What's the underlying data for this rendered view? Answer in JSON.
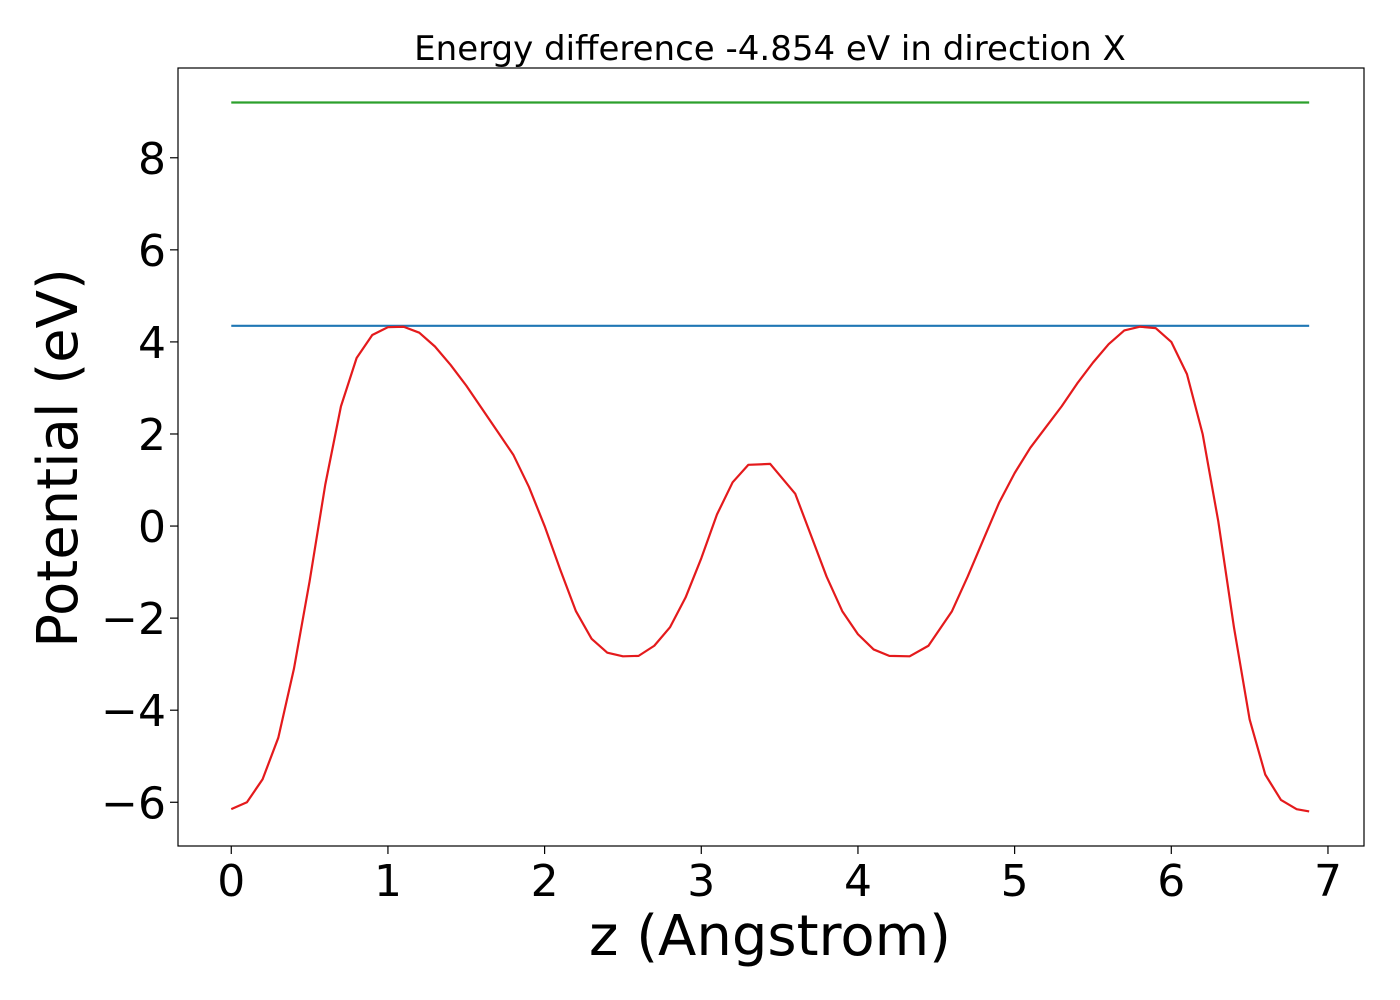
{
  "chart_data": {
    "type": "line",
    "title": "Energy difference -4.854 eV in direction X",
    "xlabel": "z (Angstrom)",
    "ylabel": "Potential (eV)",
    "xlim": [
      -0.34,
      7.23
    ],
    "ylim": [
      -6.95,
      9.95
    ],
    "xticks": [
      {
        "value": 0,
        "label": "0"
      },
      {
        "value": 1,
        "label": "1"
      },
      {
        "value": 2,
        "label": "2"
      },
      {
        "value": 3,
        "label": "3"
      },
      {
        "value": 4,
        "label": "4"
      },
      {
        "value": 5,
        "label": "5"
      },
      {
        "value": 6,
        "label": "6"
      },
      {
        "value": 7,
        "label": "7"
      }
    ],
    "yticks": [
      {
        "value": -6,
        "label": "−6"
      },
      {
        "value": -4,
        "label": "−4"
      },
      {
        "value": -2,
        "label": "−2"
      },
      {
        "value": 0,
        "label": "0"
      },
      {
        "value": 2,
        "label": "2"
      },
      {
        "value": 4,
        "label": "4"
      },
      {
        "value": 6,
        "label": "6"
      },
      {
        "value": 8,
        "label": "8"
      }
    ],
    "grid": false,
    "legend": "none",
    "series": [
      {
        "color": "#2ca02c",
        "x": [
          0.0,
          6.88
        ],
        "y": [
          9.2,
          9.2
        ]
      },
      {
        "color": "#1f77b4",
        "x": [
          0.0,
          6.88
        ],
        "y": [
          4.35,
          4.35
        ]
      },
      {
        "color": "#e41a1c",
        "x": [
          0.0,
          0.1,
          0.2,
          0.3,
          0.4,
          0.5,
          0.6,
          0.7,
          0.8,
          0.9,
          1.0,
          1.1,
          1.2,
          1.3,
          1.4,
          1.5,
          1.6,
          1.7,
          1.8,
          1.9,
          2.0,
          2.1,
          2.2,
          2.3,
          2.4,
          2.5,
          2.6,
          2.7,
          2.8,
          2.9,
          3.0,
          3.1,
          3.2,
          3.3,
          3.44,
          3.6,
          3.7,
          3.8,
          3.9,
          4.0,
          4.1,
          4.2,
          4.33,
          4.45,
          4.6,
          4.7,
          4.8,
          4.9,
          5.0,
          5.1,
          5.2,
          5.3,
          5.4,
          5.5,
          5.6,
          5.7,
          5.8,
          5.9,
          6.0,
          6.1,
          6.2,
          6.3,
          6.4,
          6.5,
          6.6,
          6.7,
          6.8,
          6.88
        ],
        "y": [
          -6.15,
          -6.0,
          -5.5,
          -4.6,
          -3.1,
          -1.2,
          0.9,
          2.6,
          3.65,
          4.15,
          4.32,
          4.33,
          4.2,
          3.9,
          3.5,
          3.05,
          2.55,
          2.05,
          1.55,
          0.85,
          0.0,
          -0.95,
          -1.85,
          -2.45,
          -2.75,
          -2.83,
          -2.82,
          -2.6,
          -2.2,
          -1.55,
          -0.7,
          0.25,
          0.95,
          1.33,
          1.35,
          0.7,
          -0.2,
          -1.1,
          -1.85,
          -2.35,
          -2.68,
          -2.82,
          -2.83,
          -2.6,
          -1.85,
          -1.1,
          -0.3,
          0.5,
          1.15,
          1.7,
          2.15,
          2.6,
          3.1,
          3.55,
          3.95,
          4.25,
          4.33,
          4.3,
          4.0,
          3.3,
          2.0,
          0.1,
          -2.2,
          -4.2,
          -5.4,
          -5.95,
          -6.15,
          -6.2
        ]
      }
    ]
  }
}
